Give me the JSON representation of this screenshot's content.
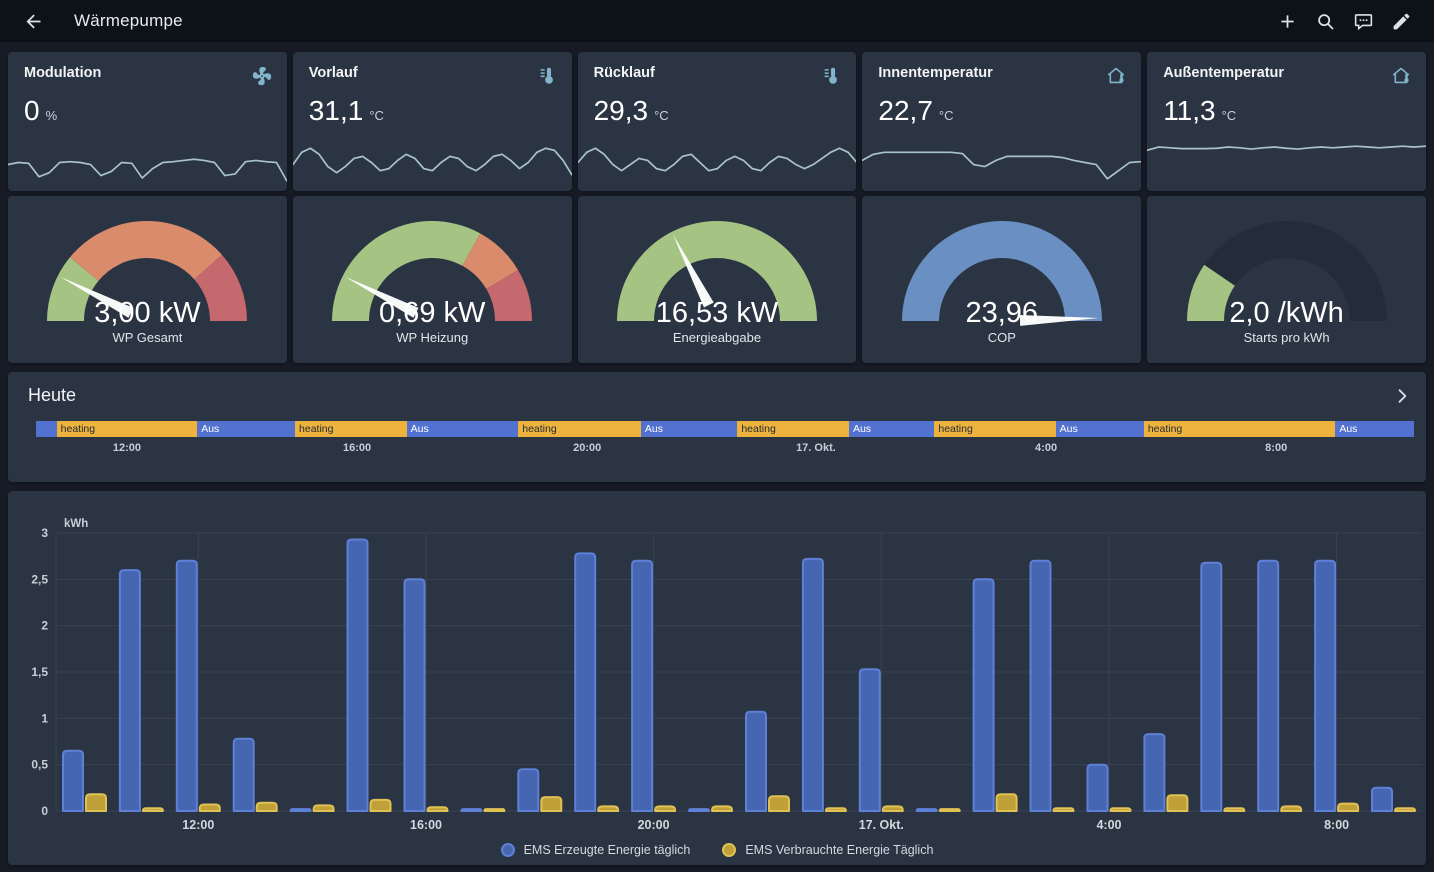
{
  "app_bar": {
    "title": "Wärmepumpe",
    "icons": [
      "arrow-left-icon",
      "add-icon",
      "search-icon",
      "chat-icon",
      "edit-icon"
    ]
  },
  "sensor_cards": [
    {
      "title": "Modulation",
      "value": "0",
      "unit": "%",
      "icon": "fan-icon",
      "sparkline": [
        0.45,
        0.5,
        0.48,
        0.15,
        0.25,
        0.5,
        0.52,
        0.5,
        0.45,
        0.18,
        0.28,
        0.5,
        0.48,
        0.12,
        0.35,
        0.5,
        0.52,
        0.55,
        0.58,
        0.55,
        0.5,
        0.18,
        0.22,
        0.52,
        0.55,
        0.52,
        0.5,
        0.05
      ]
    },
    {
      "title": "Vorlauf",
      "value": "31,1",
      "unit": "°C",
      "icon": "thermometer-lines-icon",
      "sparkline": [
        0.45,
        0.75,
        0.85,
        0.7,
        0.4,
        0.25,
        0.4,
        0.6,
        0.65,
        0.5,
        0.3,
        0.35,
        0.55,
        0.7,
        0.6,
        0.35,
        0.3,
        0.5,
        0.65,
        0.6,
        0.4,
        0.3,
        0.45,
        0.65,
        0.7,
        0.55,
        0.35,
        0.5,
        0.75,
        0.85,
        0.8,
        0.55,
        0.2
      ]
    },
    {
      "title": "Rücklauf",
      "value": "29,3",
      "unit": "°C",
      "icon": "thermometer-lines-icon",
      "sparkline": [
        0.5,
        0.75,
        0.85,
        0.7,
        0.45,
        0.3,
        0.45,
        0.6,
        0.55,
        0.35,
        0.3,
        0.45,
        0.65,
        0.7,
        0.5,
        0.3,
        0.35,
        0.55,
        0.65,
        0.55,
        0.35,
        0.3,
        0.5,
        0.65,
        0.6,
        0.45,
        0.35,
        0.45,
        0.6,
        0.75,
        0.85,
        0.75,
        0.5
      ]
    },
    {
      "title": "Innentemperatur",
      "value": "22,7",
      "unit": "°C",
      "icon": "home-thermometer-icon",
      "sparkline": [
        0.55,
        0.7,
        0.75,
        0.75,
        0.75,
        0.75,
        0.75,
        0.75,
        0.75,
        0.72,
        0.45,
        0.4,
        0.55,
        0.65,
        0.65,
        0.65,
        0.65,
        0.65,
        0.62,
        0.55,
        0.5,
        0.45,
        0.1,
        0.3,
        0.5,
        0.52
      ]
    },
    {
      "title": "Außentemperatur",
      "value": "11,3",
      "unit": "°C",
      "icon": "home-thermometer-icon",
      "sparkline": [
        0.8,
        0.88,
        0.86,
        0.84,
        0.84,
        0.84,
        0.85,
        0.88,
        0.86,
        0.83,
        0.86,
        0.88,
        0.85,
        0.83,
        0.86,
        0.88,
        0.86,
        0.88,
        0.9,
        0.88,
        0.86,
        0.88,
        0.9,
        0.88,
        0.9
      ]
    }
  ],
  "gauges": [
    {
      "value": "3,00 kW",
      "label": "WP Gesamt",
      "needle": 0.15,
      "segments": [
        {
          "from": 0,
          "to": 0.22,
          "color": "#a5c483"
        },
        {
          "from": 0.22,
          "to": 0.77,
          "color": "#d98b6c"
        },
        {
          "from": 0.77,
          "to": 1,
          "color": "#c5696e"
        }
      ]
    },
    {
      "value": "0,69 kW",
      "label": "WP Heizung",
      "needle": 0.15,
      "segments": [
        {
          "from": 0,
          "to": 0.66,
          "color": "#a5c483"
        },
        {
          "from": 0.66,
          "to": 0.83,
          "color": "#d98b6c"
        },
        {
          "from": 0.83,
          "to": 1,
          "color": "#c5696e"
        }
      ]
    },
    {
      "value": "16,53 kW",
      "label": "Energieabgabe",
      "needle": 0.35,
      "segments": [
        {
          "from": 0,
          "to": 1,
          "color": "#a5c483"
        }
      ]
    },
    {
      "value": "23,96",
      "label": "COP",
      "needle": 0.99,
      "segments": [
        {
          "from": 0,
          "to": 1,
          "color": "#6a8fc3"
        }
      ]
    },
    {
      "value": "2,0 /kWh",
      "label": "Starts pro kWh",
      "needle": null,
      "segments": [
        {
          "from": 0,
          "to": 0.19,
          "color": "#a5c483"
        },
        {
          "from": 0.19,
          "to": 1,
          "color": "#242b39"
        }
      ]
    }
  ],
  "timeline": {
    "title": "Heute",
    "colors": {
      "heating": "#edb33d",
      "off": "#5372d0"
    },
    "segments": [
      {
        "state": "off",
        "label": "",
        "width": 1.5
      },
      {
        "state": "heating",
        "label": "heating",
        "width": 10.2
      },
      {
        "state": "off",
        "label": "Aus",
        "width": 7.1
      },
      {
        "state": "heating",
        "label": "heating",
        "width": 8.1
      },
      {
        "state": "off",
        "label": "Aus",
        "width": 8.1
      },
      {
        "state": "heating",
        "label": "heating",
        "width": 8.9
      },
      {
        "state": "off",
        "label": "Aus",
        "width": 7.0
      },
      {
        "state": "heating",
        "label": "heating",
        "width": 8.1
      },
      {
        "state": "off",
        "label": "Aus",
        "width": 6.2
      },
      {
        "state": "heating",
        "label": "heating",
        "width": 8.8
      },
      {
        "state": "off",
        "label": "Aus",
        "width": 6.4
      },
      {
        "state": "heating",
        "label": "heating",
        "width": 13.9
      },
      {
        "state": "off",
        "label": "Aus",
        "width": 5.7
      }
    ],
    "ticks": [
      {
        "label": "12:00",
        "pos": 6.6
      },
      {
        "label": "16:00",
        "pos": 23.3
      },
      {
        "label": "20:00",
        "pos": 40.0
      },
      {
        "label": "17. Okt.",
        "pos": 56.6
      },
      {
        "label": "4:00",
        "pos": 73.3
      },
      {
        "label": "8:00",
        "pos": 90.0
      }
    ]
  },
  "chart_data": {
    "type": "bar",
    "ylabel": "kWh",
    "ylim": [
      0,
      3
    ],
    "yticks": [
      "3",
      "2,5",
      "2",
      "1,5",
      "1",
      "0,5",
      "0"
    ],
    "grid": true,
    "legend_position": "bottom",
    "x_ticks": [
      {
        "label": "12:00",
        "pair": 2
      },
      {
        "label": "16:00",
        "pair": 6
      },
      {
        "label": "20:00",
        "pair": 10
      },
      {
        "label": "17. Okt.",
        "pair": 14
      },
      {
        "label": "4:00",
        "pair": 18
      },
      {
        "label": "8:00",
        "pair": 22
      }
    ],
    "series": [
      {
        "name": "EMS Erzeugte Energie täglich",
        "color": "#4666b1",
        "border": "#5e80d8",
        "values": [
          0.65,
          2.6,
          2.7,
          0.78,
          0.02,
          2.93,
          2.5,
          0.02,
          0.45,
          2.78,
          2.7,
          0.02,
          1.07,
          2.72,
          1.53,
          0.02,
          2.5,
          2.7,
          0.5,
          0.83,
          2.68,
          2.7,
          2.7,
          0.25
        ]
      },
      {
        "name": "EMS Verbrauchte Energie Täglich",
        "color": "#c0a039",
        "border": "#dfc154",
        "values": [
          0.18,
          0.03,
          0.07,
          0.09,
          0.06,
          0.12,
          0.04,
          0.02,
          0.15,
          0.05,
          0.05,
          0.05,
          0.16,
          0.03,
          0.05,
          0.02,
          0.18,
          0.03,
          0.03,
          0.17,
          0.03,
          0.05,
          0.08,
          0.03
        ]
      }
    ]
  },
  "colors": {
    "page_bg": "#161b25",
    "topbar_bg": "#0d1219",
    "card_bg": "#2b3442",
    "icon_blue": "#82b5cb",
    "sparkline": "#a9c3ca",
    "grid": "#3a4250"
  }
}
